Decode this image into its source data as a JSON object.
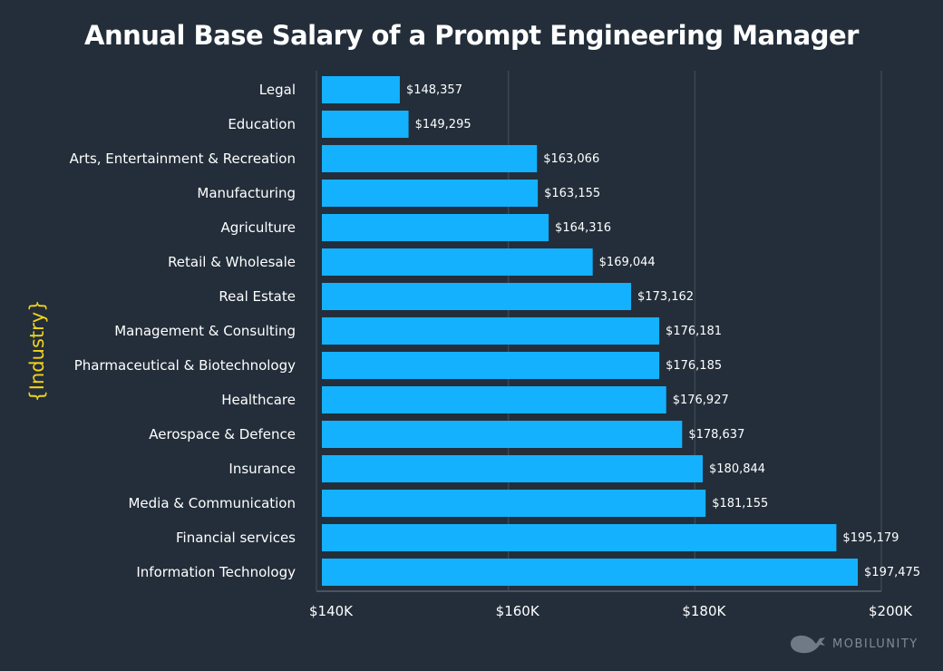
{
  "chart_data": {
    "type": "bar",
    "orientation": "horizontal",
    "title": "Annual Base Salary of a Prompt Engineering Manager",
    "ylabel": "{Industry}",
    "xlabel": "",
    "xlim": [
      140000,
      200000
    ],
    "xticks": [
      140000,
      160000,
      180000,
      200000
    ],
    "xtick_labels": [
      "$140K",
      "$160K",
      "$180K",
      "$200K"
    ],
    "grid": "vertical",
    "bar_color": "#14b1ff",
    "label_color": "#f2d21c",
    "categories": [
      "Legal",
      "Education",
      "Arts, Entertainment & Recreation",
      "Manufacturing",
      "Agriculture",
      "Retail & Wholesale",
      "Real Estate",
      "Management & Consulting",
      "Pharmaceutical & Biotechnology",
      "Healthcare",
      "Aerospace & Defence",
      "Insurance",
      "Media & Communication",
      "Financial services",
      "Information Technology"
    ],
    "values": [
      148357,
      149295,
      163066,
      163155,
      164316,
      169044,
      173162,
      176181,
      176185,
      176927,
      178637,
      180844,
      181155,
      195179,
      197475
    ],
    "value_labels": [
      "$148,357",
      "$149,295",
      "$163,066",
      "$163,155",
      "$164,316",
      "$169,044",
      "$173,162",
      "$176,181",
      "$176,185",
      "$176,927",
      "$178,637",
      "$180,844",
      "$181,155",
      "$195,179",
      "$197,475"
    ]
  },
  "branding": {
    "logo_text": "MOBILUNITY",
    "logo_icon": "whale-icon"
  }
}
